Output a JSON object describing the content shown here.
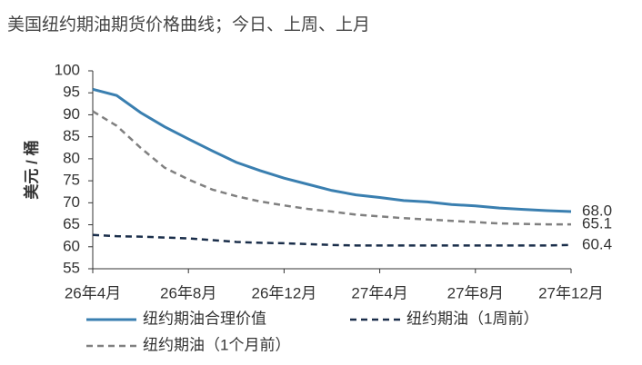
{
  "chart_data": {
    "type": "line",
    "title": "美国纽约期油期货价格曲线；今日、上周、上月",
    "y_label": "美元 / 桶",
    "categories": [
      "26年4月",
      null,
      null,
      null,
      "26年8月",
      null,
      null,
      null,
      "26年12月",
      null,
      null,
      null,
      "27年4月",
      null,
      null,
      null,
      "27年8月",
      null,
      null,
      null,
      "27年12月"
    ],
    "ylim": [
      55,
      100
    ],
    "yticks": [
      55,
      60,
      65,
      70,
      75,
      80,
      85,
      90,
      95,
      100
    ],
    "grid": false,
    "legend": "bottom",
    "series": [
      {
        "name": "纽约期油合理价值",
        "color": "#3a7fb0",
        "dash": "solid",
        "values": [
          95.8,
          94.4,
          90.5,
          87.3,
          84.5,
          81.8,
          79.2,
          77.3,
          75.6,
          74.2,
          72.8,
          71.8,
          71.2,
          70.5,
          70.2,
          69.6,
          69.3,
          68.8,
          68.5,
          68.2,
          68.0
        ],
        "value_labels": [
          null,
          null,
          null,
          null,
          null,
          null,
          null,
          null,
          null,
          null,
          null,
          null,
          null,
          null,
          null,
          null,
          null,
          null,
          null,
          null,
          "68.0"
        ]
      },
      {
        "name": "纽约期油（1周前）",
        "color": "#1a2e4a",
        "dash": "dashed",
        "values": [
          62.7,
          62.4,
          62.3,
          62.1,
          61.9,
          61.5,
          61.1,
          60.9,
          60.8,
          60.6,
          60.4,
          60.3,
          60.3,
          60.3,
          60.3,
          60.3,
          60.3,
          60.3,
          60.3,
          60.3,
          60.4
        ],
        "value_labels": [
          null,
          null,
          null,
          null,
          null,
          null,
          null,
          null,
          null,
          null,
          null,
          null,
          null,
          null,
          null,
          null,
          null,
          null,
          null,
          null,
          "60.4"
        ]
      },
      {
        "name": "纽约期油（1个月前）",
        "color": "#808080",
        "dash": "dashed",
        "values": [
          90.8,
          87.5,
          82.5,
          78.0,
          75.3,
          73.0,
          71.5,
          70.3,
          69.4,
          68.6,
          68.0,
          67.3,
          66.9,
          66.5,
          66.2,
          65.9,
          65.6,
          65.3,
          65.2,
          65.1,
          65.1
        ],
        "value_labels": [
          null,
          null,
          null,
          null,
          null,
          null,
          null,
          null,
          null,
          null,
          null,
          null,
          null,
          null,
          null,
          null,
          null,
          null,
          null,
          null,
          "65.1"
        ]
      }
    ]
  }
}
